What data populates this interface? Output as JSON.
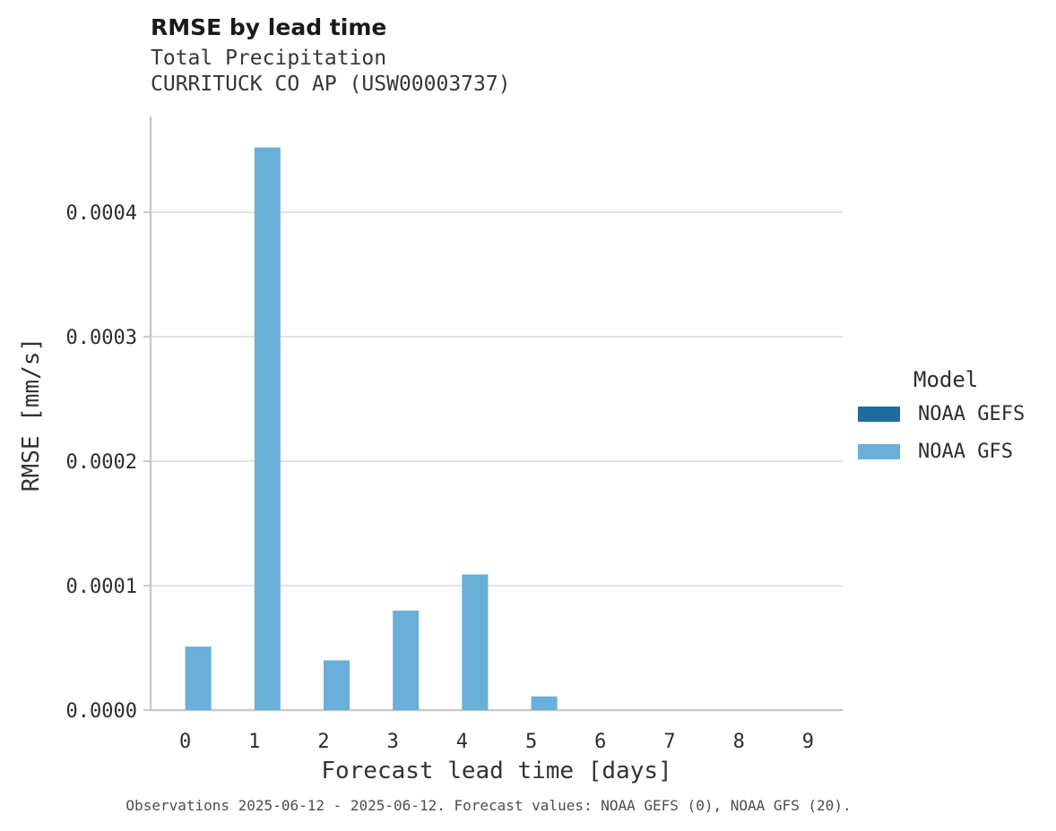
{
  "header": {
    "title": "RMSE by lead time",
    "subtitle_lines": [
      "Total Precipitation",
      "CURRITUCK CO AP (USW00003737)"
    ]
  },
  "chart_data": {
    "type": "bar",
    "title": "RMSE by lead time",
    "subtitle": "Total Precipitation — CURRITUCK CO AP (USW00003737)",
    "xlabel": "Forecast lead time [days]",
    "ylabel": "RMSE [mm/s]",
    "categories": [
      "0",
      "1",
      "2",
      "3",
      "4",
      "5",
      "6",
      "7",
      "8",
      "9"
    ],
    "series": [
      {
        "name": "NOAA GEFS",
        "color": "#1e6d9f",
        "values": [
          0,
          0,
          0,
          0,
          0,
          0,
          0,
          0,
          0,
          0
        ]
      },
      {
        "name": "NOAA GFS",
        "color": "#69afd7",
        "values": [
          5.1e-05,
          0.000452,
          4e-05,
          8e-05,
          0.000109,
          1.1e-05,
          0,
          0,
          0,
          0
        ]
      }
    ],
    "ylim": [
      0,
      0.000477
    ],
    "yticks": [
      0,
      0.0001,
      0.0002,
      0.0003,
      0.0004
    ],
    "ytick_labels": [
      "0.0000",
      "0.0001",
      "0.0002",
      "0.0003",
      "0.0004"
    ],
    "grid": "horizontal",
    "legend_position": "right"
  },
  "legend": {
    "title": "Model",
    "items": [
      {
        "label": "NOAA GEFS",
        "color": "#1e6d9f"
      },
      {
        "label": "NOAA GFS",
        "color": "#69afd7"
      }
    ]
  },
  "footer": {
    "caption": "Observations 2025-06-12 - 2025-06-12. Forecast values: NOAA GEFS (0), NOAA GFS (20)."
  },
  "colors": {
    "gridline": "#d8d8d8",
    "axis_line": "#c9c9c9",
    "tick_text": "#2d2d2d"
  }
}
